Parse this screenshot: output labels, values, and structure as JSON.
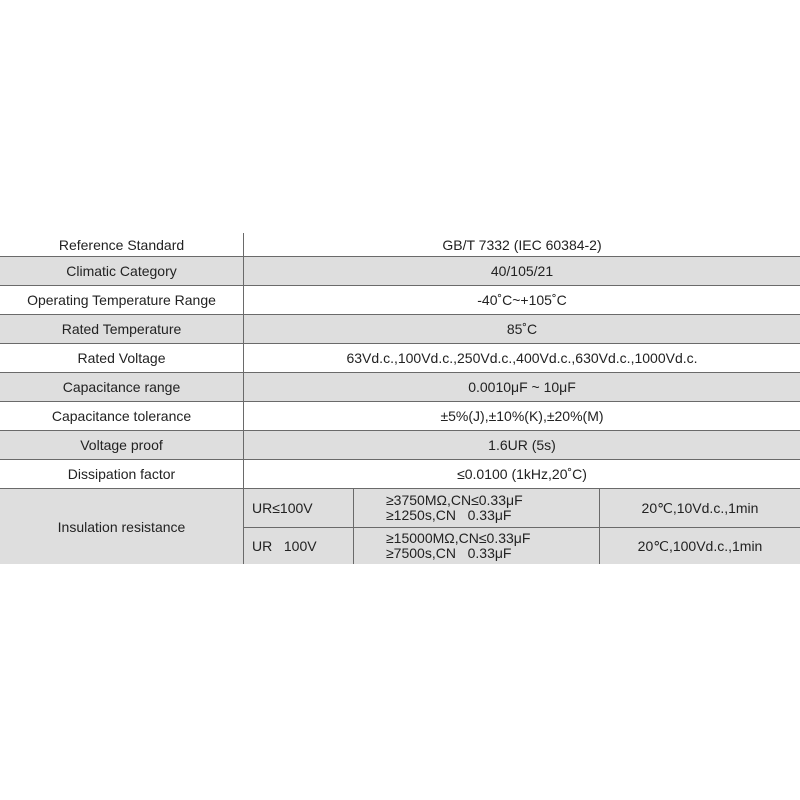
{
  "rows": [
    {
      "label": "Reference Standard",
      "value": "GB/T 7332 (IEC 60384-2)"
    },
    {
      "label": "Climatic Category",
      "value": "40/105/21"
    },
    {
      "label": "Operating Temperature Range",
      "value": "-40˚C~+105˚C"
    },
    {
      "label": "Rated Temperature",
      "value": "85˚C"
    },
    {
      "label": "Rated Voltage",
      "value": "63Vd.c.,100Vd.c.,250Vd.c.,400Vd.c.,630Vd.c.,1000Vd.c."
    },
    {
      "label": "Capacitance range",
      "value": "0.0010μF ~ 10μF"
    },
    {
      "label": "Capacitance tolerance",
      "value": "±5%(J),±10%(K),±20%(M)"
    },
    {
      "label": "Voltage proof",
      "value": "1.6UR (5s)"
    },
    {
      "label": "Dissipation factor",
      "value": "≤0.0100 (1kHz,20˚C)"
    }
  ],
  "insulation": {
    "label": "Insulation resistance",
    "sub_rows": [
      {
        "condition": "UR≤100V",
        "line1": "≥3750MΩ,CN≤0.33μF",
        "line2": "≥1250s,CN   0.33μF",
        "test": "20℃,10Vd.c.,1min"
      },
      {
        "condition": "UR   100V",
        "line1": "≥15000MΩ,CN≤0.33μF",
        "line2": "≥7500s,CN   0.33μF",
        "test": "20℃,100Vd.c.,1min"
      }
    ]
  },
  "colors": {
    "stripe": "#dedede",
    "border": "#6a6a6a"
  }
}
